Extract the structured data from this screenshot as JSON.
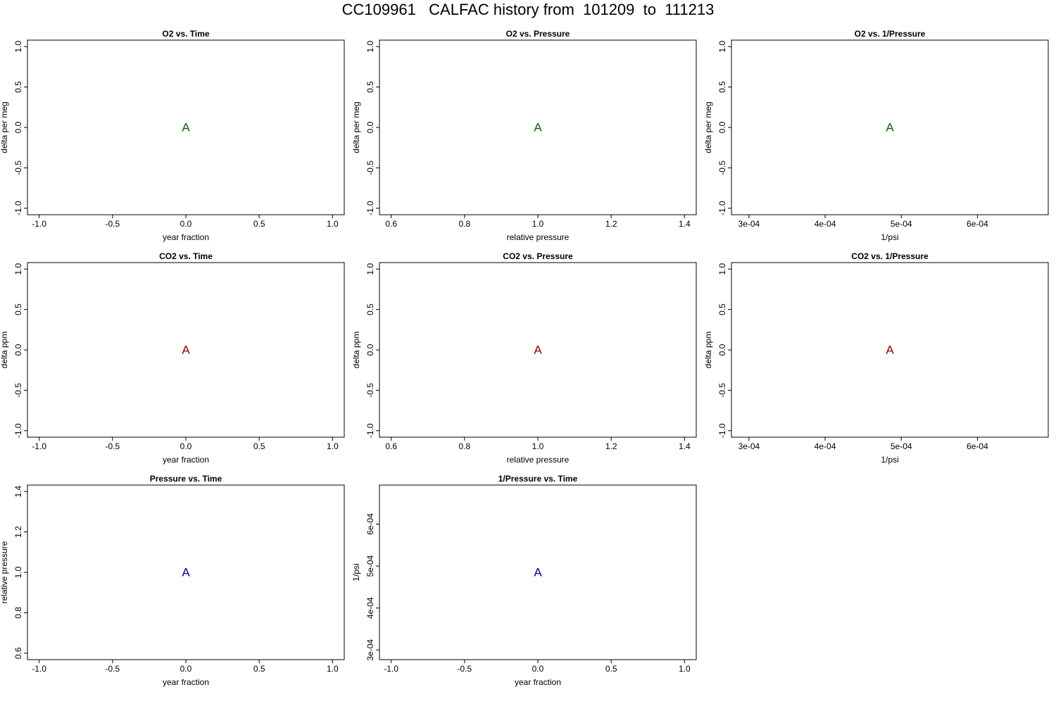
{
  "figure_title": "CC109961   CALFAC history from  101209  to  111213",
  "colors": {
    "o2": "#006400",
    "co2": "#8b0000",
    "pressure": "#00008b"
  },
  "chart_data": [
    {
      "type": "scatter",
      "title": "O2 vs. Time",
      "xlabel": "year fraction",
      "ylabel": "delta per meg",
      "xlim": [
        -1.08,
        1.08
      ],
      "ylim": [
        -1.08,
        1.08
      ],
      "xticks": [
        -1.0,
        -0.5,
        0.0,
        0.5,
        1.0
      ],
      "xtick_labels": [
        "-1.0",
        "-0.5",
        "0.0",
        "0.5",
        "1.0"
      ],
      "yticks": [
        -1.0,
        -0.5,
        0.0,
        0.5,
        1.0
      ],
      "ytick_labels": [
        "-1.0",
        "-0.5",
        "0.0",
        "0.5",
        "1.0"
      ],
      "points": [
        {
          "x": 0.0,
          "y": 0.0,
          "label": "A"
        }
      ],
      "color": "#006400"
    },
    {
      "type": "scatter",
      "title": "O2 vs. Pressure",
      "xlabel": "relative pressure",
      "ylabel": "delta per meg",
      "xlim": [
        0.568,
        1.432
      ],
      "ylim": [
        -1.08,
        1.08
      ],
      "xticks": [
        0.6,
        0.8,
        1.0,
        1.2,
        1.4
      ],
      "xtick_labels": [
        "0.6",
        "0.8",
        "1.0",
        "1.2",
        "1.4"
      ],
      "yticks": [
        -1.0,
        -0.5,
        0.0,
        0.5,
        1.0
      ],
      "ytick_labels": [
        "-1.0",
        "-0.5",
        "0.0",
        "0.5",
        "1.0"
      ],
      "points": [
        {
          "x": 1.0,
          "y": 0.0,
          "label": "A"
        }
      ],
      "color": "#006400"
    },
    {
      "type": "scatter",
      "title": "O2 vs. 1/Pressure",
      "xlabel": "1/psi",
      "ylabel": "delta per meg",
      "xlim": [
        0.000277,
        0.000693
      ],
      "ylim": [
        -1.08,
        1.08
      ],
      "xticks": [
        0.0003,
        0.0004,
        0.0005,
        0.0006
      ],
      "xtick_labels": [
        "3e-04",
        "4e-04",
        "5e-04",
        "6e-04"
      ],
      "yticks": [
        -1.0,
        -0.5,
        0.0,
        0.5,
        1.0
      ],
      "ytick_labels": [
        "-1.0",
        "-0.5",
        "0.0",
        "0.5",
        "1.0"
      ],
      "points": [
        {
          "x": 0.000485,
          "y": 0.0,
          "label": "A"
        }
      ],
      "color": "#006400"
    },
    {
      "type": "scatter",
      "title": "CO2 vs. Time",
      "xlabel": "year fraction",
      "ylabel": "delta ppm",
      "xlim": [
        -1.08,
        1.08
      ],
      "ylim": [
        -1.08,
        1.08
      ],
      "xticks": [
        -1.0,
        -0.5,
        0.0,
        0.5,
        1.0
      ],
      "xtick_labels": [
        "-1.0",
        "-0.5",
        "0.0",
        "0.5",
        "1.0"
      ],
      "yticks": [
        -1.0,
        -0.5,
        0.0,
        0.5,
        1.0
      ],
      "ytick_labels": [
        "-1.0",
        "-0.5",
        "0.0",
        "0.5",
        "1.0"
      ],
      "points": [
        {
          "x": 0.0,
          "y": 0.0,
          "label": "A"
        }
      ],
      "color": "#8b0000"
    },
    {
      "type": "scatter",
      "title": "CO2 vs. Pressure",
      "xlabel": "relative pressure",
      "ylabel": "delta ppm",
      "xlim": [
        0.568,
        1.432
      ],
      "ylim": [
        -1.08,
        1.08
      ],
      "xticks": [
        0.6,
        0.8,
        1.0,
        1.2,
        1.4
      ],
      "xtick_labels": [
        "0.6",
        "0.8",
        "1.0",
        "1.2",
        "1.4"
      ],
      "yticks": [
        -1.0,
        -0.5,
        0.0,
        0.5,
        1.0
      ],
      "ytick_labels": [
        "-1.0",
        "-0.5",
        "0.0",
        "0.5",
        "1.0"
      ],
      "points": [
        {
          "x": 1.0,
          "y": 0.0,
          "label": "A"
        }
      ],
      "color": "#8b0000"
    },
    {
      "type": "scatter",
      "title": "CO2 vs. 1/Pressure",
      "xlabel": "1/psi",
      "ylabel": "delta ppm",
      "xlim": [
        0.000277,
        0.000693
      ],
      "ylim": [
        -1.08,
        1.08
      ],
      "xticks": [
        0.0003,
        0.0004,
        0.0005,
        0.0006
      ],
      "xtick_labels": [
        "3e-04",
        "4e-04",
        "5e-04",
        "6e-04"
      ],
      "yticks": [
        -1.0,
        -0.5,
        0.0,
        0.5,
        1.0
      ],
      "ytick_labels": [
        "-1.0",
        "-0.5",
        "0.0",
        "0.5",
        "1.0"
      ],
      "points": [
        {
          "x": 0.000485,
          "y": 0.0,
          "label": "A"
        }
      ],
      "color": "#8b0000"
    },
    {
      "type": "scatter",
      "title": "Pressure vs. Time",
      "xlabel": "year fraction",
      "ylabel": "relative pressure",
      "xlim": [
        -1.08,
        1.08
      ],
      "ylim": [
        0.568,
        1.432
      ],
      "xticks": [
        -1.0,
        -0.5,
        0.0,
        0.5,
        1.0
      ],
      "xtick_labels": [
        "-1.0",
        "-0.5",
        "0.0",
        "0.5",
        "1.0"
      ],
      "yticks": [
        0.6,
        0.8,
        1.0,
        1.2,
        1.4
      ],
      "ytick_labels": [
        "0.6",
        "0.8",
        "1.0",
        "1.2",
        "1.4"
      ],
      "points": [
        {
          "x": 0.0,
          "y": 1.0,
          "label": "A"
        }
      ],
      "color": "#00008b"
    },
    {
      "type": "scatter",
      "title": "1/Pressure vs. Time",
      "xlabel": "year fraction",
      "ylabel": "1/psi",
      "xlim": [
        -1.08,
        1.08
      ],
      "ylim": [
        0.000277,
        0.000693
      ],
      "xticks": [
        -1.0,
        -0.5,
        0.0,
        0.5,
        1.0
      ],
      "xtick_labels": [
        "-1.0",
        "-0.5",
        "0.0",
        "0.5",
        "1.0"
      ],
      "yticks": [
        0.0003,
        0.0004,
        0.0005,
        0.0006
      ],
      "ytick_labels": [
        "3e-04",
        "4e-04",
        "5e-04",
        "6e-04"
      ],
      "points": [
        {
          "x": 0.0,
          "y": 0.000485,
          "label": "A"
        }
      ],
      "color": "#00008b"
    }
  ]
}
